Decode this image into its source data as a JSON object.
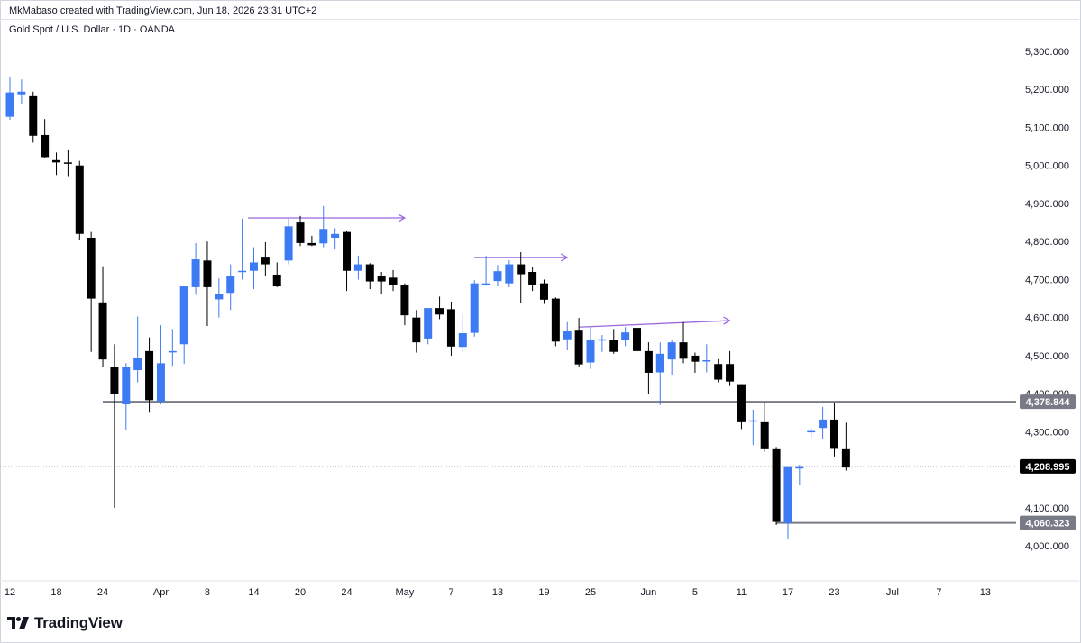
{
  "header": {
    "attribution": "MkMabaso created with TradingView.com, Jun 18, 2026 23:31 UTC+2",
    "symbol_line": "Gold Spot / U.S. Dollar · 1D · OANDA"
  },
  "footer": {
    "brand": "TradingView",
    "logo_icon": "tradingview-logo-icon"
  },
  "colors": {
    "bull": "#2962ff",
    "bull_fill": "#3d7bf5",
    "bear": "#000000",
    "level_line": "#787b86",
    "ray": "#9c6ade",
    "tag_dark": "#000000",
    "tag_gray": "#787b86"
  },
  "chart_data": {
    "type": "candlestick",
    "title": "Gold Spot / U.S. Dollar · 1D · OANDA",
    "ylim": [
      3900,
      5370
    ],
    "y_ticks": [
      "4,000.000",
      "4,100.000",
      "4,300.000",
      "4,400.000",
      "4,500.000",
      "4,600.000",
      "4,700.000",
      "4,800.000",
      "4,900.000",
      "5,000.000",
      "5,100.000",
      "5,200.000",
      "5,300.000"
    ],
    "y_tick_values": [
      4000,
      4100,
      4300,
      4400,
      4500,
      4600,
      4700,
      4800,
      4900,
      5000,
      5100,
      5200,
      5300
    ],
    "x_ticks": [
      "12",
      "18",
      "24",
      "Apr",
      "8",
      "14",
      "20",
      "24",
      "May",
      "7",
      "13",
      "19",
      "25",
      "Jun",
      "5",
      "11",
      "17",
      "23",
      "Jul",
      "7",
      "13"
    ],
    "x_tick_index": [
      0,
      4,
      8,
      13,
      17,
      21,
      25,
      29,
      34,
      38,
      42,
      46,
      50,
      55,
      59,
      63,
      67,
      71,
      76,
      80,
      84
    ],
    "candles": [
      {
        "i": 0,
        "o": 5128,
        "h": 5232,
        "l": 5120,
        "c": 5192
      },
      {
        "i": 1,
        "o": 5187,
        "h": 5226,
        "l": 5160,
        "c": 5194
      },
      {
        "i": 2,
        "o": 5182,
        "h": 5194,
        "l": 5060,
        "c": 5078
      },
      {
        "i": 3,
        "o": 5080,
        "h": 5122,
        "l": 5020,
        "c": 5022
      },
      {
        "i": 4,
        "o": 5014,
        "h": 5034,
        "l": 4975,
        "c": 5008
      },
      {
        "i": 5,
        "o": 5008,
        "h": 5040,
        "l": 4972,
        "c": 5005
      },
      {
        "i": 6,
        "o": 5000,
        "h": 5012,
        "l": 4805,
        "c": 4820
      },
      {
        "i": 7,
        "o": 4810,
        "h": 4825,
        "l": 4510,
        "c": 4650
      },
      {
        "i": 8,
        "o": 4640,
        "h": 4735,
        "l": 4470,
        "c": 4490
      },
      {
        "i": 9,
        "o": 4470,
        "h": 4530,
        "l": 4100,
        "c": 4400
      },
      {
        "i": 10,
        "o": 4372,
        "h": 4480,
        "l": 4305,
        "c": 4470
      },
      {
        "i": 11,
        "o": 4462,
        "h": 4603,
        "l": 4430,
        "c": 4493
      },
      {
        "i": 12,
        "o": 4512,
        "h": 4548,
        "l": 4350,
        "c": 4383
      },
      {
        "i": 13,
        "o": 4380,
        "h": 4580,
        "l": 4372,
        "c": 4480
      },
      {
        "i": 14,
        "o": 4512,
        "h": 4570,
        "l": 4473,
        "c": 4512
      },
      {
        "i": 15,
        "o": 4530,
        "h": 4680,
        "l": 4478,
        "c": 4682
      },
      {
        "i": 16,
        "o": 4680,
        "h": 4796,
        "l": 4660,
        "c": 4753
      },
      {
        "i": 17,
        "o": 4750,
        "h": 4800,
        "l": 4578,
        "c": 4680
      },
      {
        "i": 18,
        "o": 4648,
        "h": 4703,
        "l": 4600,
        "c": 4663
      },
      {
        "i": 19,
        "o": 4665,
        "h": 4740,
        "l": 4620,
        "c": 4710
      },
      {
        "i": 20,
        "o": 4720,
        "h": 4860,
        "l": 4700,
        "c": 4723
      },
      {
        "i": 21,
        "o": 4723,
        "h": 4785,
        "l": 4675,
        "c": 4745
      },
      {
        "i": 22,
        "o": 4760,
        "h": 4798,
        "l": 4710,
        "c": 4740
      },
      {
        "i": 23,
        "o": 4713,
        "h": 4745,
        "l": 4680,
        "c": 4682
      },
      {
        "i": 24,
        "o": 4750,
        "h": 4860,
        "l": 4740,
        "c": 4840
      },
      {
        "i": 25,
        "o": 4850,
        "h": 4867,
        "l": 4788,
        "c": 4796
      },
      {
        "i": 26,
        "o": 4796,
        "h": 4815,
        "l": 4788,
        "c": 4790
      },
      {
        "i": 27,
        "o": 4795,
        "h": 4893,
        "l": 4785,
        "c": 4833
      },
      {
        "i": 28,
        "o": 4810,
        "h": 4835,
        "l": 4780,
        "c": 4820
      },
      {
        "i": 29,
        "o": 4825,
        "h": 4828,
        "l": 4670,
        "c": 4723
      },
      {
        "i": 30,
        "o": 4723,
        "h": 4763,
        "l": 4700,
        "c": 4740
      },
      {
        "i": 31,
        "o": 4740,
        "h": 4743,
        "l": 4675,
        "c": 4695
      },
      {
        "i": 32,
        "o": 4710,
        "h": 4720,
        "l": 4662,
        "c": 4695
      },
      {
        "i": 33,
        "o": 4705,
        "h": 4725,
        "l": 4670,
        "c": 4685
      },
      {
        "i": 34,
        "o": 4685,
        "h": 4690,
        "l": 4580,
        "c": 4606
      },
      {
        "i": 35,
        "o": 4600,
        "h": 4620,
        "l": 4508,
        "c": 4535
      },
      {
        "i": 36,
        "o": 4545,
        "h": 4625,
        "l": 4530,
        "c": 4625
      },
      {
        "i": 37,
        "o": 4625,
        "h": 4655,
        "l": 4596,
        "c": 4608
      },
      {
        "i": 38,
        "o": 4622,
        "h": 4642,
        "l": 4500,
        "c": 4524
      },
      {
        "i": 39,
        "o": 4523,
        "h": 4610,
        "l": 4510,
        "c": 4559
      },
      {
        "i": 40,
        "o": 4560,
        "h": 4698,
        "l": 4550,
        "c": 4690
      },
      {
        "i": 41,
        "o": 4688,
        "h": 4762,
        "l": 4684,
        "c": 4690
      },
      {
        "i": 42,
        "o": 4696,
        "h": 4738,
        "l": 4682,
        "c": 4722
      },
      {
        "i": 43,
        "o": 4690,
        "h": 4751,
        "l": 4680,
        "c": 4740
      },
      {
        "i": 44,
        "o": 4740,
        "h": 4772,
        "l": 4638,
        "c": 4714
      },
      {
        "i": 45,
        "o": 4720,
        "h": 4732,
        "l": 4670,
        "c": 4685
      },
      {
        "i": 46,
        "o": 4690,
        "h": 4700,
        "l": 4636,
        "c": 4647
      },
      {
        "i": 47,
        "o": 4650,
        "h": 4653,
        "l": 4525,
        "c": 4537
      },
      {
        "i": 48,
        "o": 4543,
        "h": 4588,
        "l": 4514,
        "c": 4564
      },
      {
        "i": 49,
        "o": 4568,
        "h": 4599,
        "l": 4470,
        "c": 4477
      },
      {
        "i": 50,
        "o": 4482,
        "h": 4575,
        "l": 4465,
        "c": 4540
      },
      {
        "i": 51,
        "o": 4543,
        "h": 4554,
        "l": 4510,
        "c": 4543
      },
      {
        "i": 52,
        "o": 4541,
        "h": 4570,
        "l": 4505,
        "c": 4510
      },
      {
        "i": 53,
        "o": 4541,
        "h": 4575,
        "l": 4525,
        "c": 4561
      },
      {
        "i": 54,
        "o": 4573,
        "h": 4586,
        "l": 4500,
        "c": 4512
      },
      {
        "i": 55,
        "o": 4512,
        "h": 4535,
        "l": 4400,
        "c": 4455
      },
      {
        "i": 56,
        "o": 4456,
        "h": 4535,
        "l": 4370,
        "c": 4505
      },
      {
        "i": 57,
        "o": 4490,
        "h": 4540,
        "l": 4450,
        "c": 4535
      },
      {
        "i": 58,
        "o": 4535,
        "h": 4588,
        "l": 4480,
        "c": 4492
      },
      {
        "i": 59,
        "o": 4500,
        "h": 4508,
        "l": 4455,
        "c": 4484
      },
      {
        "i": 60,
        "o": 4488,
        "h": 4530,
        "l": 4456,
        "c": 4488
      },
      {
        "i": 61,
        "o": 4478,
        "h": 4491,
        "l": 4430,
        "c": 4437
      },
      {
        "i": 62,
        "o": 4478,
        "h": 4512,
        "l": 4420,
        "c": 4432
      },
      {
        "i": 63,
        "o": 4425,
        "h": 4425,
        "l": 4307,
        "c": 4325
      },
      {
        "i": 64,
        "o": 4327,
        "h": 4358,
        "l": 4265,
        "c": 4330
      },
      {
        "i": 65,
        "o": 4325,
        "h": 4378,
        "l": 4247,
        "c": 4254
      },
      {
        "i": 66,
        "o": 4254,
        "h": 4260,
        "l": 4055,
        "c": 4063
      },
      {
        "i": 67,
        "o": 4060,
        "h": 4202,
        "l": 4018,
        "c": 4207
      },
      {
        "i": 68,
        "o": 4204,
        "h": 4213,
        "l": 4160,
        "c": 4207
      },
      {
        "i": 69,
        "o": 4302,
        "h": 4310,
        "l": 4285,
        "c": 4302
      },
      {
        "i": 70,
        "o": 4310,
        "h": 4365,
        "l": 4282,
        "c": 4332
      },
      {
        "i": 71,
        "o": 4332,
        "h": 4375,
        "l": 4235,
        "c": 4255
      },
      {
        "i": 72,
        "o": 4254,
        "h": 4324,
        "l": 4198,
        "c": 4206
      }
    ],
    "horizontal_levels": [
      {
        "name": "resistance",
        "value": 4378.844,
        "label": "4,378.844",
        "start_i": 8,
        "tag_color": "#787b86"
      },
      {
        "name": "swing-low",
        "value": 4060.323,
        "label": "4,060.323",
        "start_i": 66,
        "tag_color": "#787b86"
      }
    ],
    "last_price": {
      "value": 4208.995,
      "label": "4,208.995"
    },
    "rays": [
      {
        "start_i": 20.5,
        "end_i": 34,
        "value": 4862
      },
      {
        "start_i": 40,
        "end_i": 48,
        "value": 4758
      },
      {
        "start_i": 49,
        "end_i": 62,
        "value": 4592,
        "start_value": 4575
      }
    ],
    "grid": false
  }
}
